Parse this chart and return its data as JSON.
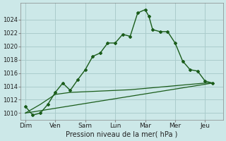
{
  "background_color": "#cce8e8",
  "grid_color": "#aacccc",
  "line_color": "#1a5c1a",
  "title": "Pression niveau de la mer( hPa )",
  "ylabel_vals": [
    1010,
    1012,
    1014,
    1016,
    1018,
    1020,
    1022,
    1024
  ],
  "xlabels": [
    "Dim",
    "Ven",
    "Sam",
    "Lun",
    "Mar",
    "Mer",
    "Jeu"
  ],
  "x_tick_pos": [
    0,
    2,
    4,
    6,
    8,
    10,
    12
  ],
  "line1_x": [
    0,
    0.5,
    1.0,
    1.5,
    2.0,
    2.5,
    3.0,
    3.5,
    4.0,
    4.5,
    5.0,
    5.5,
    6.0,
    6.5,
    7.0,
    7.5,
    8.0,
    8.25,
    8.5,
    9.0,
    9.5,
    10.0,
    10.5,
    11.0,
    11.5,
    12.0,
    12.5
  ],
  "line1_y": [
    1011.0,
    1009.7,
    1010.0,
    1011.3,
    1013.1,
    1014.5,
    1013.4,
    1015.0,
    1016.5,
    1018.5,
    1019.0,
    1020.5,
    1020.5,
    1021.8,
    1021.5,
    1025.0,
    1025.5,
    1024.5,
    1022.5,
    1022.2,
    1022.2,
    1020.5,
    1017.8,
    1016.5,
    1016.3,
    1014.8,
    1014.5
  ],
  "line2_x": [
    0,
    1,
    2,
    3,
    4,
    5,
    6,
    7,
    8,
    9,
    10,
    11,
    12,
    12.5
  ],
  "line2_y": [
    1010.0,
    1011.3,
    1012.8,
    1013.1,
    1013.2,
    1013.3,
    1013.4,
    1013.5,
    1013.7,
    1013.9,
    1014.1,
    1014.3,
    1014.5,
    1014.5
  ],
  "line3_x": [
    0,
    12.5
  ],
  "line3_y": [
    1010.0,
    1014.5
  ],
  "ylim": [
    1009.0,
    1026.5
  ],
  "xlim": [
    -0.3,
    13.2
  ]
}
